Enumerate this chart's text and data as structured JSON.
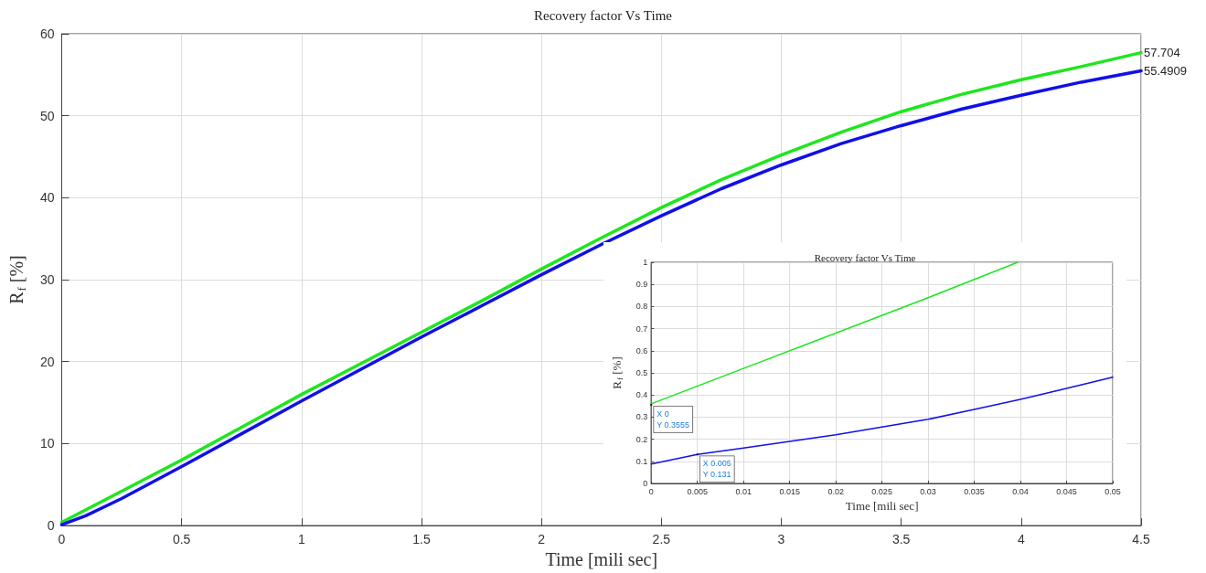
{
  "chart_data": [
    {
      "type": "line",
      "title": "Recovery factor Vs Time",
      "xlabel": "Time [mili sec]",
      "ylabel": "R$_{f}$ [%]",
      "xlim": [
        0,
        4.5
      ],
      "xticks": [
        0,
        0.5,
        1,
        1.5,
        2,
        2.5,
        3,
        3.5,
        4,
        4.5
      ],
      "ylim": [
        0,
        60
      ],
      "yticks": [
        0,
        10,
        20,
        30,
        40,
        50,
        60
      ],
      "grid": true,
      "line_style": "solid",
      "series": [
        {
          "color": "#1ee61e",
          "x": [
            0,
            0.25,
            0.5,
            0.75,
            1,
            1.25,
            1.5,
            1.75,
            2,
            2.25,
            2.5,
            2.75,
            3,
            3.25,
            3.5,
            3.75,
            4,
            4.25,
            4.5
          ],
          "values": [
            0.4,
            4.2,
            8,
            12,
            16,
            19.8,
            23.6,
            27.4,
            31.3,
            35.1,
            38.8,
            42.2,
            45.2,
            48,
            50.5,
            52.6,
            54.4,
            56,
            57.704
          ]
        },
        {
          "color": "#1010e8",
          "x": [
            0,
            0.1,
            0.25,
            0.5,
            0.75,
            1,
            1.25,
            1.5,
            1.75,
            2,
            2.25,
            2.5,
            2.75,
            3,
            3.25,
            3.5,
            3.75,
            4,
            4.25,
            4.5
          ],
          "values": [
            0.1,
            1.2,
            3.3,
            7.2,
            11.2,
            15.2,
            19.1,
            23,
            26.8,
            30.6,
            34.3,
            37.8,
            41.1,
            44,
            46.6,
            48.8,
            50.8,
            52.5,
            54.1,
            55.4909
          ]
        }
      ],
      "annotations": [
        {
          "text": "57.704",
          "x": 4.5,
          "y": 57.704
        },
        {
          "text": "55.4909",
          "x": 4.5,
          "y": 55.4909
        }
      ]
    },
    {
      "type": "line",
      "title": "Recovery factor Vs Time",
      "xlabel": "Time [mili sec]",
      "ylabel": "R$_{f}$ [%]",
      "xlim": [
        0,
        0.05
      ],
      "xticks": [
        0,
        0.005,
        0.01,
        0.015,
        0.02,
        0.025,
        0.03,
        0.035,
        0.04,
        0.045,
        0.05
      ],
      "ylim": [
        0,
        1
      ],
      "yticks": [
        0,
        0.1,
        0.2,
        0.3,
        0.4,
        0.5,
        0.6,
        0.7,
        0.8,
        0.9,
        1
      ],
      "grid": true,
      "line_style": "solid",
      "series": [
        {
          "color": "#1ee61e",
          "x": [
            0,
            0.01,
            0.02,
            0.03,
            0.0397
          ],
          "values": [
            0.36,
            0.52,
            0.68,
            0.84,
            1
          ]
        },
        {
          "color": "#1010e8",
          "x": [
            0,
            0.005,
            0.01,
            0.015,
            0.02,
            0.025,
            0.03,
            0.035,
            0.04,
            0.045,
            0.05
          ],
          "values": [
            0.088,
            0.131,
            0.16,
            0.19,
            0.22,
            0.255,
            0.29,
            0.335,
            0.38,
            0.43,
            0.48
          ]
        }
      ],
      "annotations": [
        {
          "text": "X 0\nY 0.3555",
          "x": 0,
          "y": 0.3555
        },
        {
          "text": "X 0.005\nY 0.131",
          "x": 0.005,
          "y": 0.131
        }
      ]
    }
  ]
}
